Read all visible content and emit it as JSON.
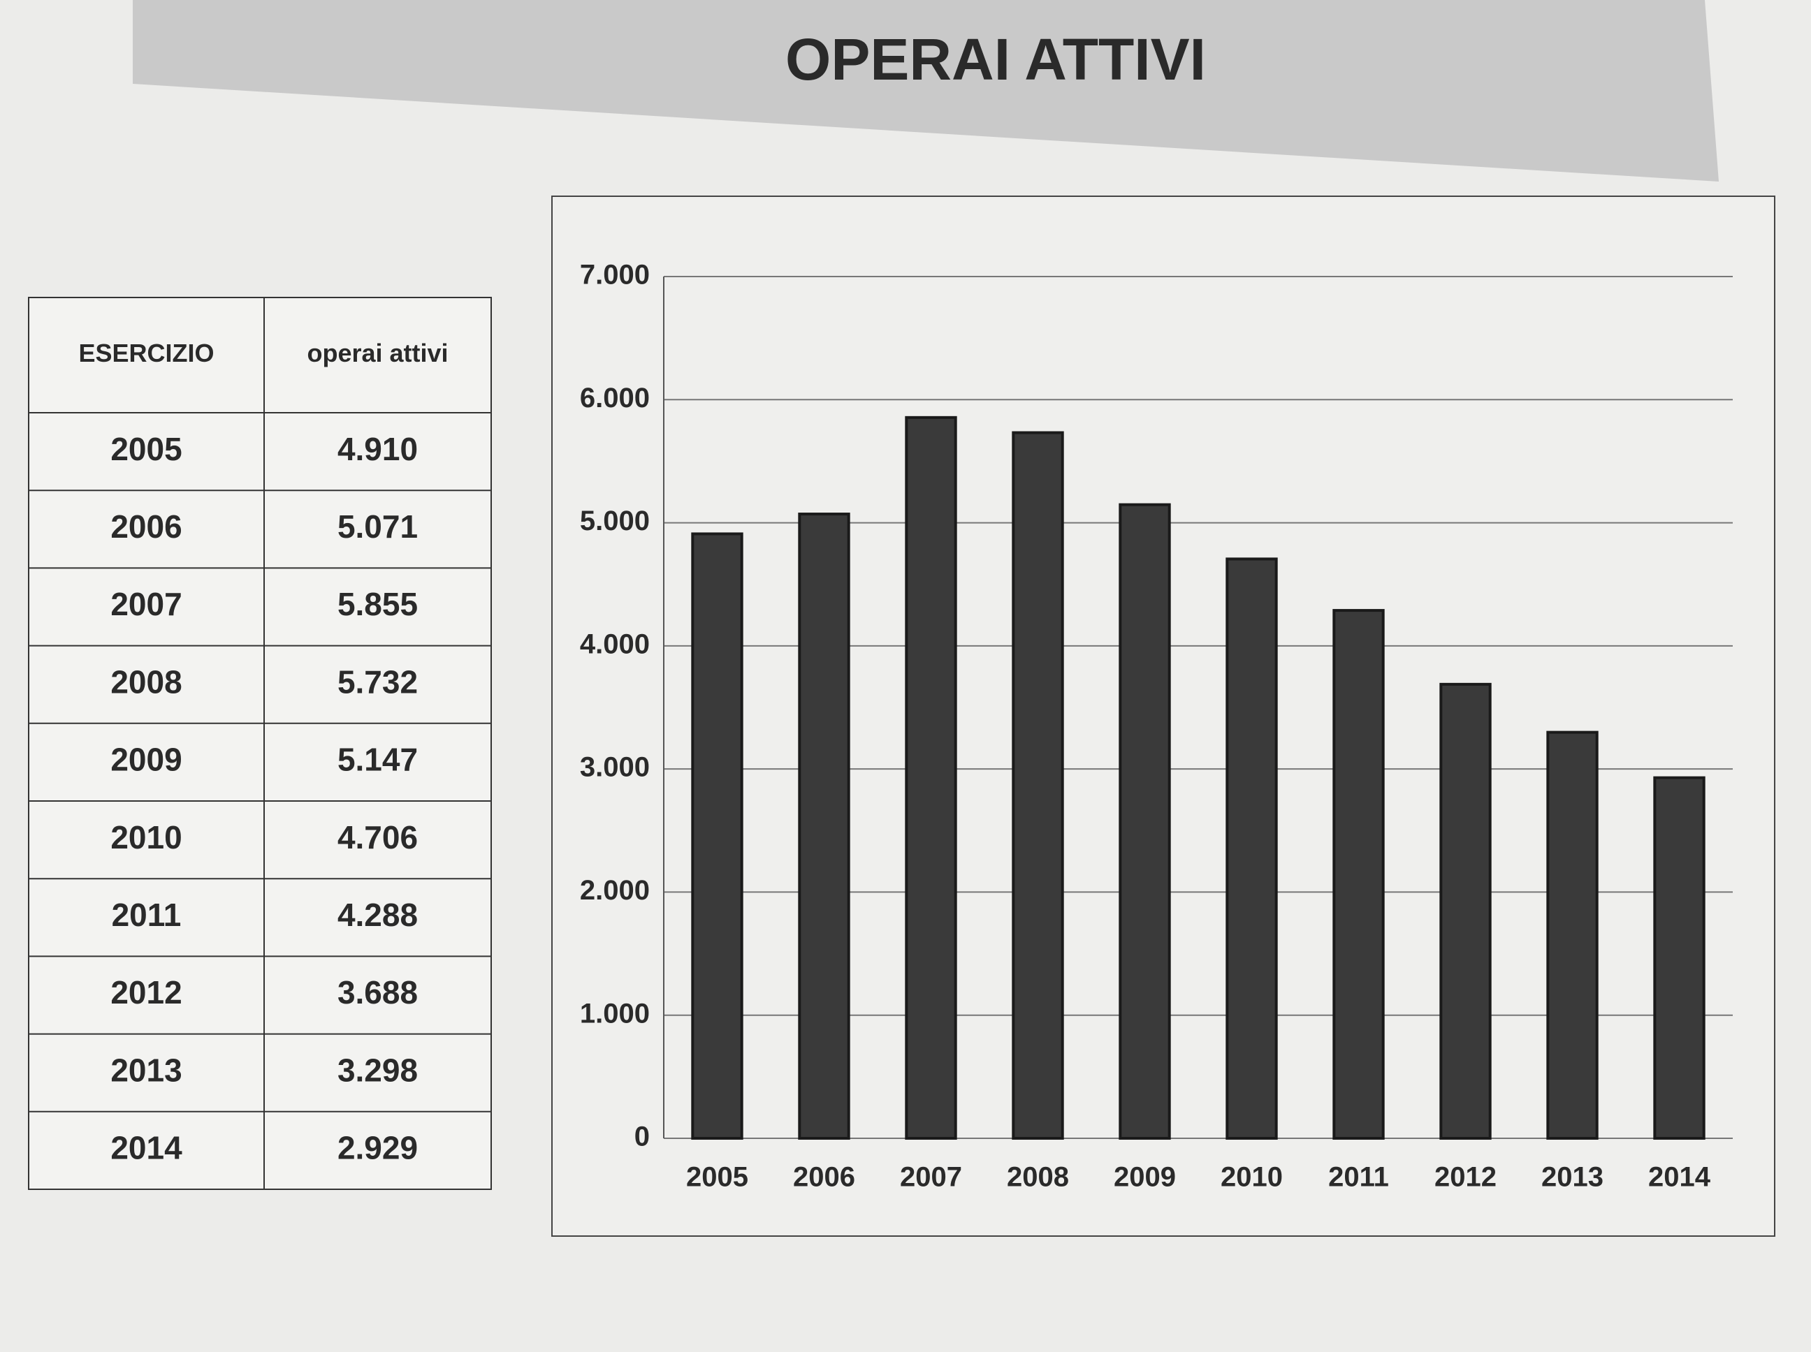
{
  "title": "OPERAI ATTIVI",
  "table": {
    "header": [
      "ESERCIZIO",
      "operai attivi"
    ],
    "rows": [
      [
        "2005",
        "4.910"
      ],
      [
        "2006",
        "5.071"
      ],
      [
        "2007",
        "5.855"
      ],
      [
        "2008",
        "5.732"
      ],
      [
        "2009",
        "5.147"
      ],
      [
        "2010",
        "4.706"
      ],
      [
        "2011",
        "4.288"
      ],
      [
        "2012",
        "3.688"
      ],
      [
        "2013",
        "3.298"
      ],
      [
        "2014",
        "2.929"
      ]
    ]
  },
  "chart_data": {
    "type": "bar",
    "categories": [
      "2005",
      "2006",
      "2007",
      "2008",
      "2009",
      "2010",
      "2011",
      "2012",
      "2013",
      "2014"
    ],
    "values": [
      4910,
      5071,
      5855,
      5732,
      5147,
      4706,
      4288,
      3688,
      3298,
      2929
    ],
    "color": "#3a3a3a",
    "ylim": [
      0,
      7000
    ],
    "yticks": [
      0,
      {
        "value": 1000,
        "label": "1.000"
      },
      {
        "value": 2000,
        "label": "2.000"
      },
      {
        "value": 3000,
        "label": "3.000"
      },
      {
        "value": 4000,
        "label": "4.000"
      },
      {
        "value": 5000,
        "label": "5.000"
      },
      {
        "value": 6000,
        "label": "6.000"
      },
      {
        "value": 7000,
        "label": "7.000"
      }
    ],
    "grid": true
  }
}
